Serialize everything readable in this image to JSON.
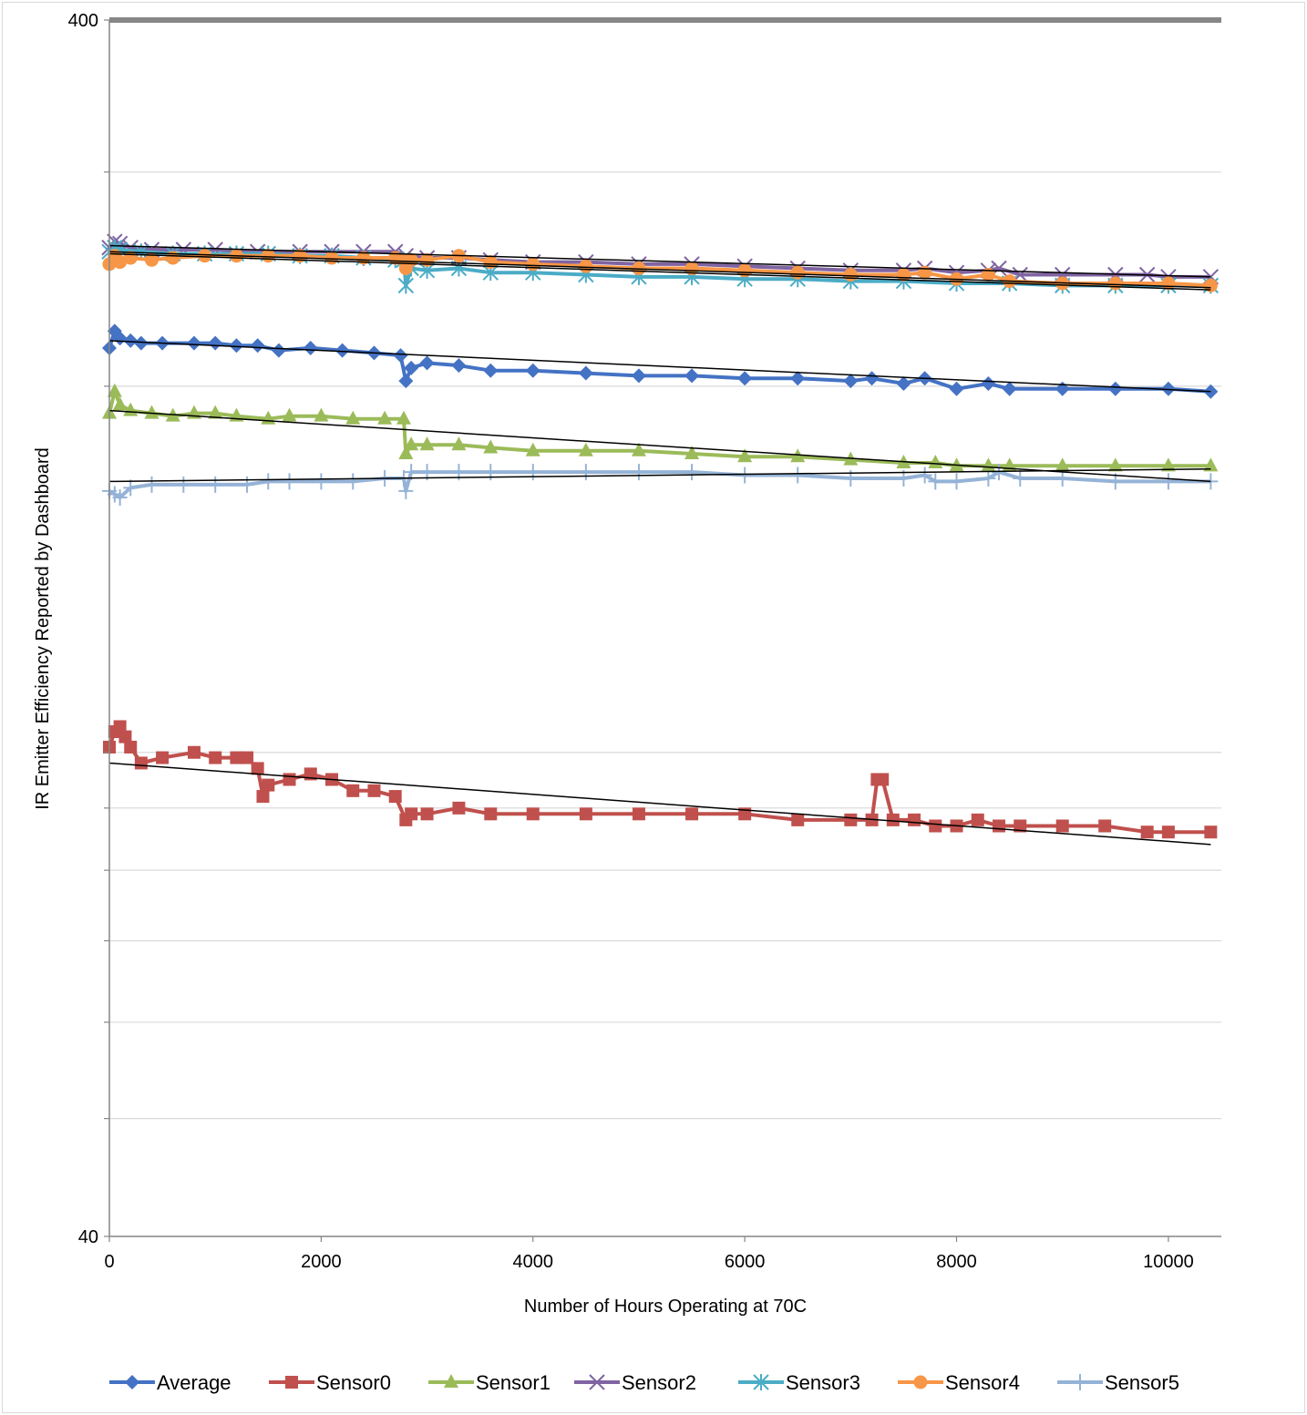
{
  "chart_data": {
    "type": "line",
    "title": "",
    "xlabel": "Number of Hours Operating at 70C",
    "ylabel": "IR Emitter Efficiency Reported by Dashboard",
    "xlim": [
      0,
      10500
    ],
    "ylim": [
      40,
      400
    ],
    "yscale": "log",
    "x_ticks": [
      "0",
      "2000",
      "4000",
      "6000",
      "8000",
      "10000"
    ],
    "y_ticks": [
      "40",
      "400"
    ],
    "grid": true,
    "legend_position": "bottom",
    "colors": {
      "Average": "#4472c4",
      "Sensor0": "#c0504d",
      "Sensor1": "#9bbb59",
      "Sensor2": "#8064a2",
      "Sensor3": "#4bacc6",
      "Sensor4": "#f79646",
      "Sensor5": "#95b3d7",
      "trend": "#000000",
      "axis": "#868686",
      "grid": "#d9d9d9"
    },
    "series": [
      {
        "name": "Average",
        "marker": "diamond",
        "x": [
          0,
          50,
          100,
          200,
          300,
          500,
          800,
          1000,
          1200,
          1400,
          1600,
          1900,
          2200,
          2500,
          2750,
          2800,
          2850,
          3000,
          3300,
          3600,
          4000,
          4500,
          5000,
          5500,
          6000,
          6500,
          7000,
          7200,
          7500,
          7700,
          8000,
          8300,
          8500,
          9000,
          9500,
          10000,
          10400
        ],
        "y": [
          215,
          222,
          219,
          218,
          217,
          217,
          217,
          217,
          216,
          216,
          214,
          215,
          214,
          213,
          212,
          202,
          207,
          209,
          208,
          206,
          206,
          205,
          204,
          204,
          203,
          203,
          202,
          203,
          201,
          203,
          199,
          201,
          199,
          199,
          199,
          199,
          198
        ]
      },
      {
        "name": "Sensor0",
        "marker": "square",
        "x": [
          0,
          50,
          100,
          150,
          200,
          300,
          500,
          800,
          1000,
          1200,
          1300,
          1400,
          1450,
          1500,
          1700,
          1900,
          2100,
          2300,
          2500,
          2700,
          2800,
          2850,
          3000,
          3300,
          3600,
          4000,
          4500,
          5000,
          5500,
          6000,
          6500,
          7000,
          7200,
          7250,
          7300,
          7400,
          7600,
          7800,
          8000,
          8200,
          8400,
          8600,
          9000,
          9400,
          9800,
          10000,
          10400
        ],
        "y": [
          101,
          104,
          105,
          103,
          101,
          98,
          99,
          100,
          99,
          99,
          99,
          97,
          92,
          94,
          95,
          96,
          95,
          93,
          93,
          92,
          88,
          89,
          89,
          90,
          89,
          89,
          89,
          89,
          89,
          89,
          88,
          88,
          88,
          95,
          95,
          88,
          88,
          87,
          87,
          88,
          87,
          87,
          87,
          87,
          86,
          86,
          86
        ]
      },
      {
        "name": "Sensor1",
        "marker": "triangle",
        "x": [
          0,
          50,
          100,
          200,
          400,
          600,
          800,
          1000,
          1200,
          1500,
          1700,
          2000,
          2300,
          2600,
          2780,
          2800,
          2850,
          3000,
          3300,
          3600,
          4000,
          4500,
          5000,
          5500,
          6000,
          6500,
          7000,
          7500,
          7800,
          8000,
          8300,
          8500,
          9000,
          9500,
          10000,
          10400
        ],
        "y": [
          190,
          198,
          193,
          191,
          190,
          189,
          190,
          190,
          189,
          188,
          189,
          189,
          188,
          188,
          188,
          176,
          179,
          179,
          179,
          178,
          177,
          177,
          177,
          176,
          175,
          175,
          174,
          173,
          173,
          172,
          172,
          172,
          172,
          172,
          172,
          172
        ]
      },
      {
        "name": "Sensor2",
        "marker": "x",
        "x": [
          0,
          50,
          100,
          200,
          400,
          700,
          1000,
          1400,
          1800,
          2100,
          2400,
          2700,
          2800,
          3000,
          3300,
          3600,
          4000,
          4500,
          5000,
          5500,
          6000,
          6500,
          7000,
          7500,
          7700,
          8000,
          8300,
          8400,
          8600,
          9000,
          9500,
          9800,
          10000,
          10400
        ],
        "y": [
          260,
          263,
          262,
          260,
          259,
          259,
          259,
          258,
          258,
          258,
          258,
          258,
          256,
          255,
          255,
          254,
          253,
          253,
          252,
          252,
          251,
          250,
          249,
          249,
          250,
          248,
          249,
          250,
          247,
          247,
          247,
          247,
          246,
          246
        ]
      },
      {
        "name": "Sensor3",
        "marker": "asterisk",
        "x": [
          0,
          50,
          100,
          300,
          600,
          900,
          1200,
          1500,
          1800,
          2100,
          2400,
          2700,
          2780,
          2800,
          2850,
          3000,
          3300,
          3600,
          4000,
          4500,
          5000,
          5500,
          6000,
          6500,
          7000,
          7500,
          8000,
          8500,
          9000,
          9500,
          10000,
          10400
        ],
        "y": [
          258,
          260,
          259,
          258,
          257,
          257,
          257,
          257,
          256,
          256,
          255,
          254,
          254,
          242,
          250,
          249,
          250,
          248,
          248,
          247,
          246,
          246,
          245,
          245,
          244,
          244,
          243,
          243,
          242,
          242,
          242,
          242
        ]
      },
      {
        "name": "Sensor4",
        "marker": "circle",
        "x": [
          0,
          50,
          100,
          200,
          400,
          600,
          900,
          1200,
          1500,
          1800,
          2100,
          2400,
          2700,
          2780,
          2800,
          2850,
          3000,
          3300,
          3600,
          4000,
          4500,
          5000,
          5500,
          6000,
          6500,
          7000,
          7500,
          7700,
          8000,
          8300,
          8500,
          9000,
          9500,
          10000,
          10400
        ],
        "y": [
          252,
          256,
          253,
          255,
          254,
          255,
          256,
          256,
          256,
          256,
          255,
          255,
          255,
          254,
          250,
          254,
          254,
          256,
          253,
          252,
          251,
          250,
          250,
          249,
          248,
          247,
          247,
          248,
          245,
          247,
          244,
          243,
          243,
          243,
          242
        ]
      },
      {
        "name": "Sensor5",
        "marker": "plus",
        "x": [
          0,
          50,
          100,
          200,
          400,
          700,
          1000,
          1300,
          1500,
          1700,
          2000,
          2300,
          2600,
          2780,
          2800,
          2850,
          3000,
          3300,
          3600,
          4000,
          4500,
          5000,
          5500,
          6000,
          6500,
          7000,
          7500,
          7700,
          7800,
          8000,
          8300,
          8400,
          8600,
          9000,
          9500,
          10000,
          10400
        ],
        "y": [
          164,
          163,
          162,
          165,
          166,
          166,
          166,
          166,
          167,
          167,
          167,
          167,
          168,
          168,
          164,
          170,
          170,
          170,
          170,
          170,
          170,
          170,
          170,
          169,
          169,
          168,
          168,
          169,
          167,
          167,
          168,
          170,
          168,
          168,
          167,
          167,
          167
        ]
      }
    ],
    "trendlines": [
      {
        "name": "Average",
        "x": [
          0,
          10400
        ],
        "y": [
          218,
          198
        ]
      },
      {
        "name": "Sensor0",
        "x": [
          0,
          10400
        ],
        "y": [
          98,
          84
        ]
      },
      {
        "name": "Sensor1",
        "x": [
          0,
          10400
        ],
        "y": [
          191,
          167
        ]
      },
      {
        "name": "Sensor2",
        "x": [
          0,
          10400
        ],
        "y": [
          261,
          246
        ]
      },
      {
        "name": "Sensor3",
        "x": [
          0,
          10400
        ],
        "y": [
          258,
          241
        ]
      },
      {
        "name": "Sensor4",
        "x": [
          0,
          10400
        ],
        "y": [
          257,
          240
        ]
      },
      {
        "name": "Sensor5",
        "x": [
          0,
          10400
        ],
        "y": [
          167,
          171
        ]
      }
    ]
  }
}
